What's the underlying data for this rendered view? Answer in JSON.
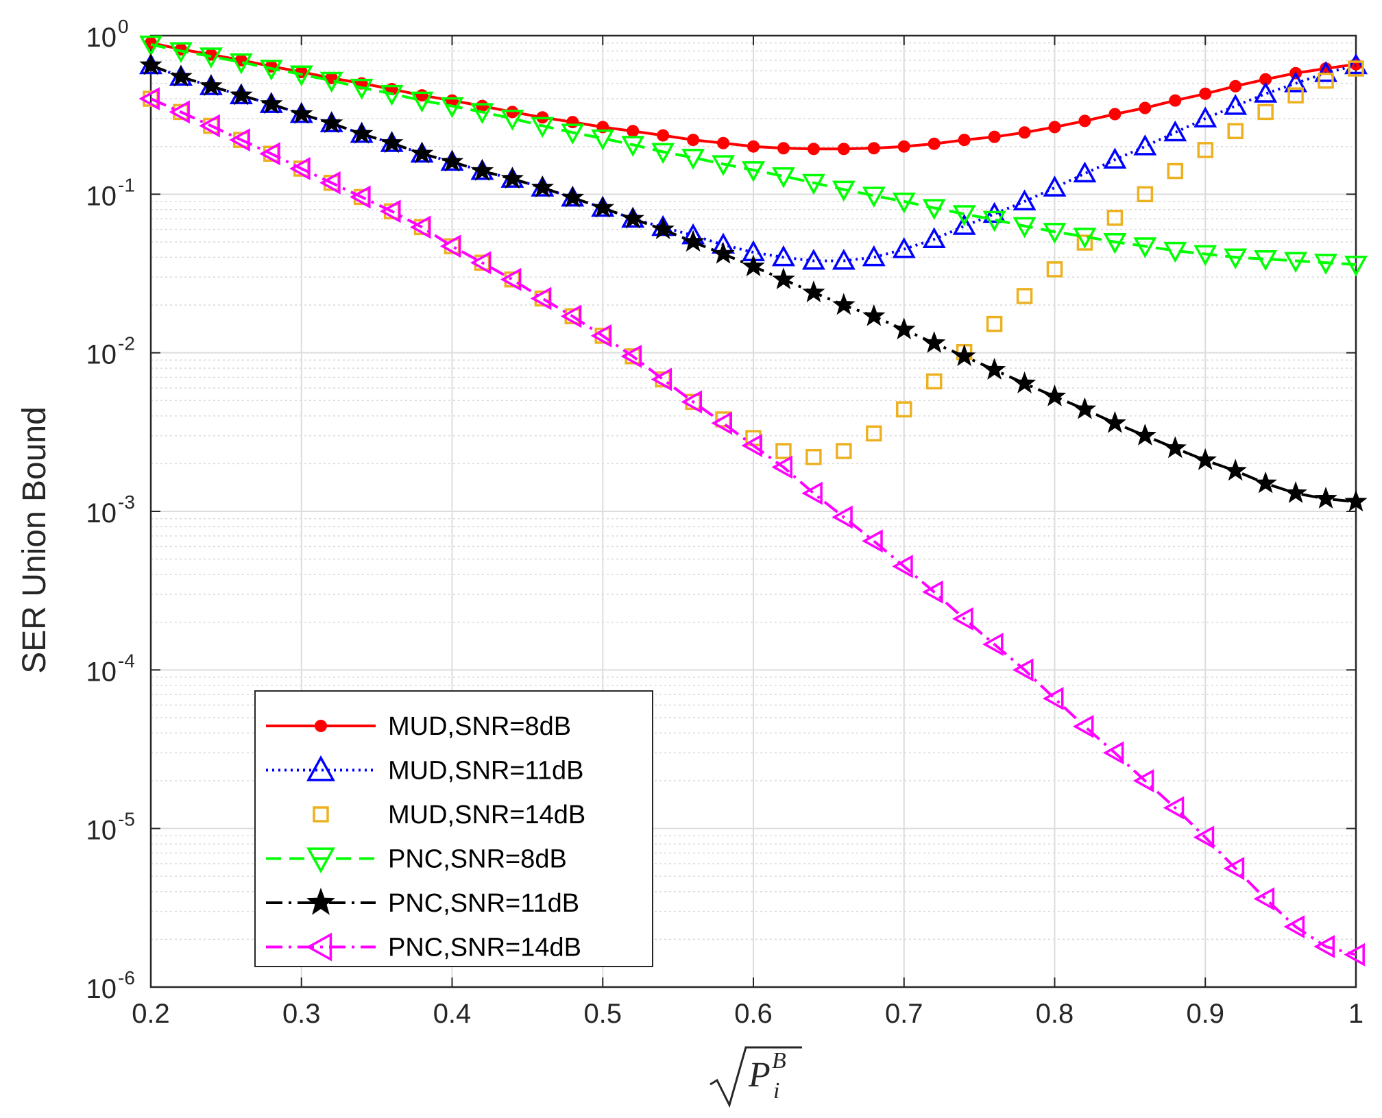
{
  "chart_data": {
    "type": "line",
    "yscale": "log",
    "title": "",
    "xlabel_math": {
      "root": "√",
      "base": "P",
      "sub": "i",
      "sup": "B"
    },
    "ylabel": "SER Union Bound",
    "xlim": [
      0.2,
      1.0
    ],
    "ylim_exponents": [
      -6,
      0
    ],
    "grid": true,
    "minor_grid": true,
    "legend_position": "lower-left",
    "x_ticks": [
      "0.2",
      "0.3",
      "0.4",
      "0.5",
      "0.6",
      "0.7",
      "0.8",
      "0.9",
      "1"
    ],
    "y_ticks": [
      {
        "base": "10",
        "exp": "0"
      },
      {
        "base": "10",
        "exp": "-1"
      },
      {
        "base": "10",
        "exp": "-2"
      },
      {
        "base": "10",
        "exp": "-3"
      },
      {
        "base": "10",
        "exp": "-4"
      },
      {
        "base": "10",
        "exp": "-5"
      },
      {
        "base": "10",
        "exp": "-6"
      }
    ],
    "x": [
      0.2,
      0.22,
      0.24,
      0.26,
      0.28,
      0.3,
      0.32,
      0.34,
      0.36,
      0.38,
      0.4,
      0.42,
      0.44,
      0.46,
      0.48,
      0.5,
      0.52,
      0.54,
      0.56,
      0.58,
      0.6,
      0.62,
      0.64,
      0.66,
      0.68,
      0.7,
      0.72,
      0.74,
      0.76,
      0.78,
      0.8,
      0.82,
      0.84,
      0.86,
      0.88,
      0.9,
      0.92,
      0.94,
      0.96,
      0.98,
      1.0
    ],
    "series": [
      {
        "name": "MUD,SNR=8dB",
        "color": "#ff0000",
        "dash": "solid",
        "marker": "asterisk",
        "values": [
          0.9,
          0.82,
          0.76,
          0.7,
          0.64,
          0.59,
          0.54,
          0.5,
          0.46,
          0.42,
          0.39,
          0.36,
          0.33,
          0.305,
          0.285,
          0.265,
          0.25,
          0.235,
          0.22,
          0.21,
          0.2,
          0.195,
          0.193,
          0.193,
          0.195,
          0.2,
          0.208,
          0.22,
          0.23,
          0.245,
          0.265,
          0.29,
          0.32,
          0.35,
          0.39,
          0.43,
          0.48,
          0.53,
          0.58,
          0.62,
          0.66
        ]
      },
      {
        "name": "MUD,SNR=11dB",
        "color": "#0000ff",
        "dash": "dotted",
        "marker": "triangle-up",
        "values": [
          0.65,
          0.55,
          0.48,
          0.42,
          0.37,
          0.32,
          0.28,
          0.24,
          0.21,
          0.18,
          0.16,
          0.14,
          0.125,
          0.11,
          0.095,
          0.082,
          0.07,
          0.062,
          0.055,
          0.048,
          0.043,
          0.04,
          0.038,
          0.038,
          0.04,
          0.045,
          0.052,
          0.063,
          0.075,
          0.09,
          0.11,
          0.135,
          0.165,
          0.2,
          0.245,
          0.3,
          0.36,
          0.43,
          0.5,
          0.58,
          0.65
        ]
      },
      {
        "name": "MUD,SNR=14dB",
        "color": "#edb120",
        "dash": "none",
        "marker": "square",
        "values": [
          0.4,
          0.33,
          0.27,
          0.22,
          0.18,
          0.145,
          0.118,
          0.096,
          0.078,
          0.062,
          0.047,
          0.037,
          0.029,
          0.022,
          0.017,
          0.0128,
          0.0095,
          0.0068,
          0.0049,
          0.0038,
          0.0029,
          0.0024,
          0.0022,
          0.0024,
          0.0031,
          0.0044,
          0.0066,
          0.0101,
          0.0152,
          0.0228,
          0.0336,
          0.0495,
          0.071,
          0.1,
          0.14,
          0.19,
          0.25,
          0.33,
          0.42,
          0.52,
          0.62
        ]
      },
      {
        "name": "PNC,SNR=8dB",
        "color": "#00ff00",
        "dash": "dashed",
        "marker": "triangle-down",
        "values": [
          0.88,
          0.8,
          0.74,
          0.68,
          0.62,
          0.57,
          0.52,
          0.47,
          0.43,
          0.39,
          0.36,
          0.33,
          0.3,
          0.27,
          0.245,
          0.225,
          0.205,
          0.185,
          0.17,
          0.155,
          0.142,
          0.13,
          0.118,
          0.107,
          0.098,
          0.09,
          0.082,
          0.075,
          0.069,
          0.063,
          0.058,
          0.054,
          0.05,
          0.047,
          0.044,
          0.042,
          0.04,
          0.039,
          0.038,
          0.037,
          0.036
        ]
      },
      {
        "name": "PNC,SNR=11dB",
        "color": "#000000",
        "dash": "dashdot",
        "marker": "star",
        "values": [
          0.65,
          0.55,
          0.48,
          0.42,
          0.37,
          0.32,
          0.28,
          0.24,
          0.21,
          0.18,
          0.16,
          0.14,
          0.125,
          0.11,
          0.095,
          0.082,
          0.07,
          0.06,
          0.05,
          0.042,
          0.035,
          0.029,
          0.024,
          0.02,
          0.017,
          0.014,
          0.0115,
          0.0095,
          0.0078,
          0.0064,
          0.0053,
          0.0044,
          0.0036,
          0.003,
          0.0025,
          0.0021,
          0.0018,
          0.0015,
          0.0013,
          0.0012,
          0.00115
        ]
      },
      {
        "name": "PNC,SNR=14dB",
        "color": "#ff00ff",
        "dash": "dashdot",
        "marker": "triangle-left",
        "values": [
          0.4,
          0.33,
          0.27,
          0.22,
          0.18,
          0.145,
          0.118,
          0.096,
          0.078,
          0.062,
          0.047,
          0.037,
          0.029,
          0.022,
          0.017,
          0.0128,
          0.0095,
          0.0068,
          0.0049,
          0.0036,
          0.0026,
          0.0019,
          0.0013,
          0.00092,
          0.00065,
          0.00045,
          0.00031,
          0.00021,
          0.000145,
          0.0001,
          6.6e-05,
          4.4e-05,
          3e-05,
          2e-05,
          1.35e-05,
          8.8e-06,
          5.6e-06,
          3.6e-06,
          2.4e-06,
          1.8e-06,
          1.6e-06
        ]
      }
    ]
  }
}
